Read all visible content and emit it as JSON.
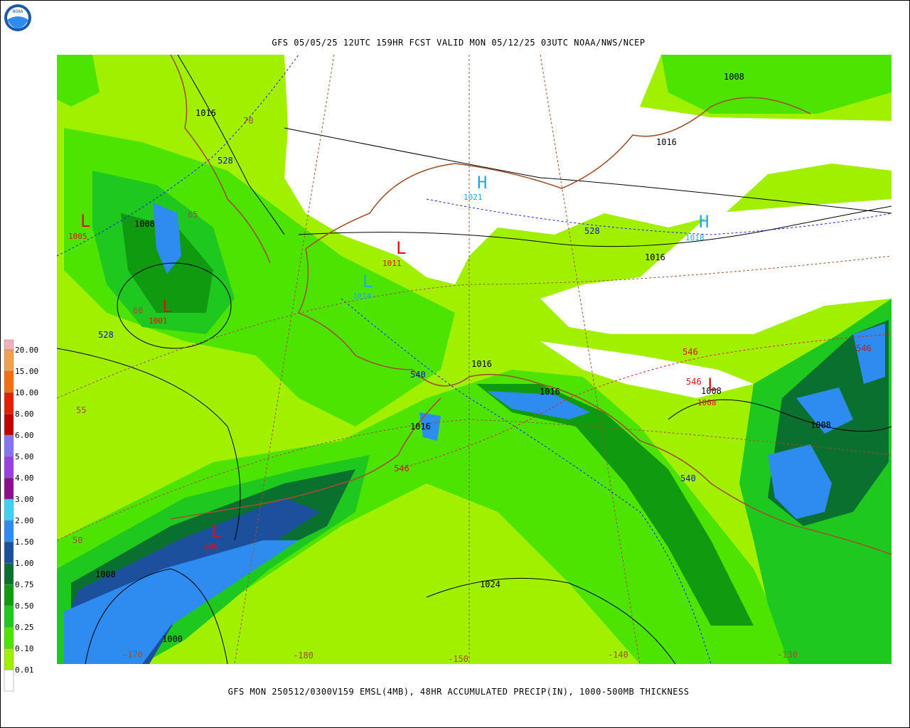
{
  "header": {
    "title": "GFS 05/05/25 12UTC 159HR FCST VALID MON 05/12/25 03UTC NOAA/NWS/NCEP"
  },
  "footer": "GFS MON 250512/0300V159 EMSL(4MB), 48HR ACCUMULATED PRECIP(IN), 1000-500MB THICKNESS",
  "logo": "NOAA",
  "legend": {
    "labels": [
      "0.01",
      "0.10",
      "0.25",
      "0.50",
      "0.75",
      "1.00",
      "1.50",
      "2.00",
      "3.00",
      "4.00",
      "5.00",
      "6.00",
      "8.00",
      "10.00",
      "15.00",
      "20.00"
    ],
    "colors": [
      "#ffffff",
      "#a0f000",
      "#4ce400",
      "#1ec81e",
      "#109a10",
      "#0a7030",
      "#1c4f9c",
      "#2e8cf0",
      "#40d0f4",
      "#8c108c",
      "#9a40e0",
      "#8474f0",
      "#c00000",
      "#e02000",
      "#f07010",
      "#f0a050",
      "#f4b0b8"
    ]
  },
  "isobars": [
    "1016",
    "1008",
    "1008",
    "1016",
    "1016",
    "1016",
    "1016",
    "1016",
    "1008",
    "1008",
    "1024",
    "1008",
    "1000"
  ],
  "highs": [
    {
      "symbol": "H",
      "value": "1021"
    },
    {
      "symbol": "H",
      "value": "1018"
    }
  ],
  "lows": [
    {
      "symbol": "L",
      "value": "1005"
    },
    {
      "symbol": "L",
      "value": "1011"
    },
    {
      "symbol": "L",
      "value": "1001"
    },
    {
      "symbol": "L",
      "value": "996"
    },
    {
      "symbol": "L",
      "value": "1008"
    }
  ],
  "weak_lows": [
    {
      "symbol": "L",
      "value": "1014"
    }
  ],
  "thickness_blue": [
    "528",
    "528",
    "528",
    "540",
    "540"
  ],
  "thickness_red": [
    "546",
    "546",
    "546",
    "546"
  ],
  "latitudes": [
    "70",
    "65",
    "60",
    "55",
    "50"
  ],
  "longitudes": [
    "-170",
    "-180",
    "-150",
    "-140",
    "-130"
  ]
}
